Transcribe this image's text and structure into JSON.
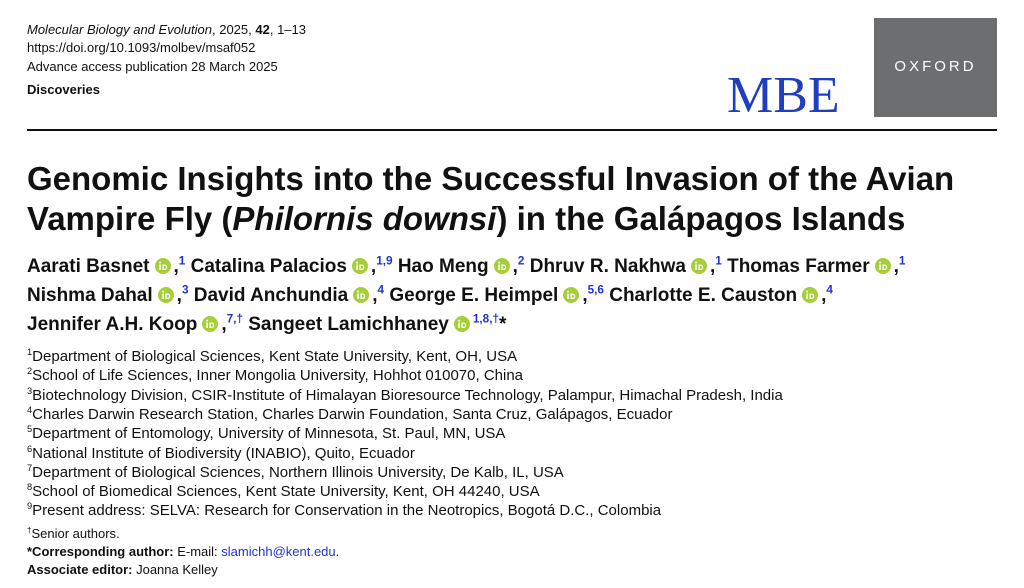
{
  "header": {
    "journal": "Molecular Biology and Evolution",
    "year": ", 2025, ",
    "volume": "42",
    "pages": ", 1–13",
    "doi": "https://doi.org/10.1093/molbev/msaf052",
    "advance": "Advance access publication 28 March 2025",
    "section": "Discoveries",
    "logo": "MBE",
    "publisher": "OXFORD"
  },
  "title": {
    "line1": "Genomic Insights into the Successful Invasion of the Avian",
    "line2_start": "Vampire Fly (",
    "line2_italic": "Philornis downsi",
    "line2_end": ") in the Galápagos Islands"
  },
  "separator": ",",
  "author_lines": [
    [
      {
        "name": "Aarati Basnet",
        "sup": "1"
      },
      {
        "name": "Catalina Palacios",
        "sup": "1,9"
      },
      {
        "name": "Hao Meng",
        "sup": "2"
      },
      {
        "name": "Dhruv R. Nakhwa",
        "sup": "1"
      },
      {
        "name": "Thomas Farmer",
        "sup": "1"
      }
    ],
    [
      {
        "name": "Nishma Dahal",
        "sup": "3"
      },
      {
        "name": "David Anchundia",
        "sup": "4"
      },
      {
        "name": "George E. Heimpel",
        "sup": "5,6"
      },
      {
        "name": "Charlotte E. Causton",
        "sup": "4"
      }
    ],
    [
      {
        "name": "Jennifer A.H. Koop",
        "sup": "7,†"
      },
      {
        "name": "Sangeet Lamichhaney",
        "sup": "1,8,†",
        "mark": "*"
      }
    ]
  ],
  "affiliations": [
    {
      "num": "1",
      "text": "Department of Biological Sciences, Kent State University, Kent, OH, USA"
    },
    {
      "num": "2",
      "text": "School of Life Sciences, Inner Mongolia University, Hohhot 010070, China"
    },
    {
      "num": "3",
      "text": "Biotechnology Division, CSIR-Institute of Himalayan Bioresource Technology, Palampur, Himachal Pradesh, India"
    },
    {
      "num": "4",
      "text": "Charles Darwin Research Station, Charles Darwin Foundation, Santa Cruz, Galápagos, Ecuador"
    },
    {
      "num": "5",
      "text": "Department of Entomology, University of Minnesota, St. Paul, MN, USA"
    },
    {
      "num": "6",
      "text": "National Institute of Biodiversity (INABIO), Quito, Ecuador"
    },
    {
      "num": "7",
      "text": "Department of Biological Sciences, Northern Illinois University, De Kalb, IL, USA"
    },
    {
      "num": "8",
      "text": "School of Biomedical Sciences, Kent State University, Kent, OH 44240, USA"
    },
    {
      "num": "9",
      "text": "Present address: SELVA: Research for Conservation in the Neotropics, Bogotá D.C., Colombia"
    }
  ],
  "notes": {
    "senior_mark": "†",
    "senior": "Senior authors.",
    "corresponding_label": "*Corresponding author:",
    "corresponding_prefix": " E-mail: ",
    "email": "slamichh@kent.edu",
    "corresponding_end": ".",
    "editor_label": "Associate editor:",
    "editor": " Joanna Kelley"
  }
}
